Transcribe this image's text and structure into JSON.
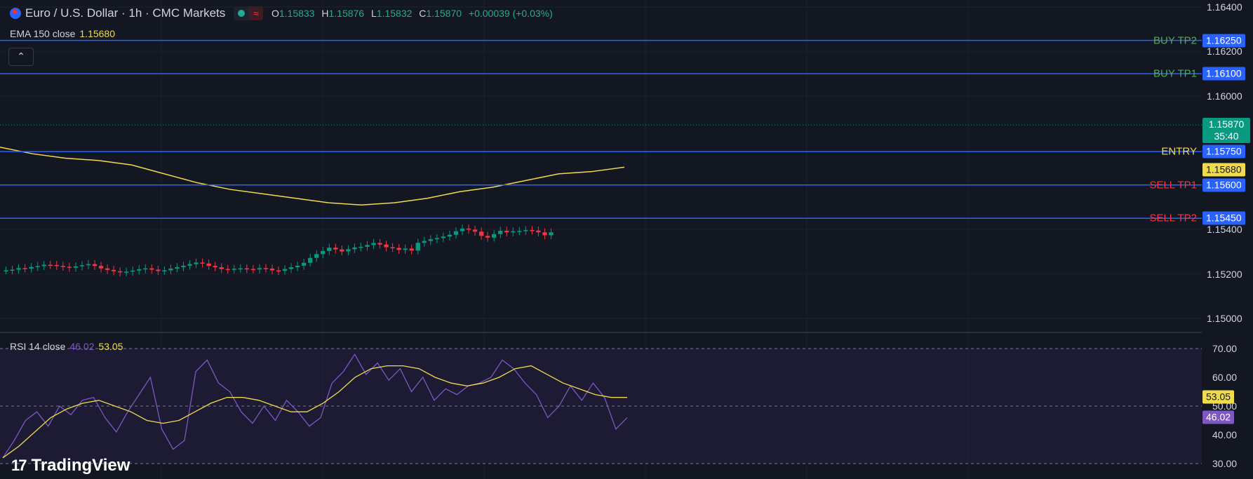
{
  "legend": {
    "symbol": "Euro / U.S. Dollar · 1h · CMC Markets",
    "wave_glyph": "≈",
    "ohlc": [
      {
        "k": "O",
        "v": "1.15833"
      },
      {
        "k": "H",
        "v": "1.15876"
      },
      {
        "k": "L",
        "v": "1.15832"
      },
      {
        "k": "C",
        "v": "1.15870"
      }
    ],
    "change": "+0.00039 (+0.03%)"
  },
  "ema": {
    "label": "EMA 150 close",
    "value": "1.15680"
  },
  "collapse_glyph": "⌃",
  "rsi": {
    "label": "RSI 14 close",
    "rsi_value": "46.02",
    "ma_value": "53.05"
  },
  "price_axis": {
    "ticks": [
      "1.16400",
      "1.16200",
      "1.16000",
      "1.15400",
      "1.15200",
      "1.15000"
    ],
    "tick_prices": [
      1.164,
      1.162,
      1.16,
      1.154,
      1.152,
      1.15
    ],
    "current": {
      "price": "1.15870",
      "countdown": "35:40",
      "value": 1.1587
    },
    "ema_badge": "1.15680",
    "ema_value": 1.1568
  },
  "levels": [
    {
      "label": "BUY TP2",
      "price": "1.16250",
      "value": 1.1625,
      "color": "#4caf50",
      "badge_color": "#2962ff"
    },
    {
      "label": "BUY TP1",
      "price": "1.16100",
      "value": 1.161,
      "color": "#4caf50",
      "badge_color": "#2962ff"
    },
    {
      "label": "ENTRY",
      "price": "1.15750",
      "value": 1.1575,
      "color": "#f0db4f",
      "badge_color": "#2962ff"
    },
    {
      "label": "SELL TP1",
      "price": "1.15600",
      "value": 1.156,
      "color": "#f23645",
      "badge_color": "#2962ff"
    },
    {
      "label": "SELL TP2",
      "price": "1.15450",
      "value": 1.1545,
      "color": "#f23645",
      "badge_color": "#2962ff"
    }
  ],
  "rsi_axis": {
    "ticks": [
      "70.00",
      "60.00",
      "50.00",
      "40.00",
      "30.00"
    ],
    "tick_values": [
      70,
      60,
      50,
      40,
      30
    ]
  },
  "colors": {
    "up": "#089981",
    "down": "#f23645",
    "ema": "#f0db4f",
    "rsi": "#7e57c2",
    "rsi_ma": "#f0db4f",
    "level_line": "#2962ff",
    "background": "#131722"
  },
  "watermark": "TradingView",
  "chart_data": {
    "type": "line",
    "title": "Euro / U.S. Dollar · 1h · CMC Markets",
    "ema_path": [
      1.1577,
      1.1574,
      1.1572,
      1.1571,
      1.1569,
      1.1565,
      1.1561,
      1.1558,
      1.1556,
      1.1554,
      1.1552,
      1.1551,
      1.1552,
      1.1554,
      1.1557,
      1.1559,
      1.1562,
      1.1565,
      1.1566,
      1.1568
    ],
    "rsi_path": [
      32,
      38,
      45,
      48,
      43,
      50,
      47,
      52,
      53,
      46,
      41,
      48,
      54,
      60,
      42,
      35,
      38,
      62,
      66,
      58,
      55,
      48,
      44,
      50,
      45,
      52,
      48,
      43,
      46,
      58,
      62,
      68,
      61,
      65,
      59,
      63,
      55,
      60,
      52,
      56,
      54,
      57,
      58,
      60,
      66,
      63,
      58,
      54,
      46,
      50,
      57,
      52,
      58,
      53,
      42,
      46
    ],
    "rsi_ma_path": [
      32,
      36,
      41,
      46,
      49,
      51,
      52,
      50,
      48,
      45,
      44,
      45,
      48,
      51,
      53,
      53,
      52,
      50,
      48,
      48,
      51,
      55,
      60,
      63,
      64,
      64,
      63,
      60,
      58,
      57,
      58,
      60,
      63,
      64,
      61,
      58,
      56,
      54,
      53,
      53
    ]
  }
}
